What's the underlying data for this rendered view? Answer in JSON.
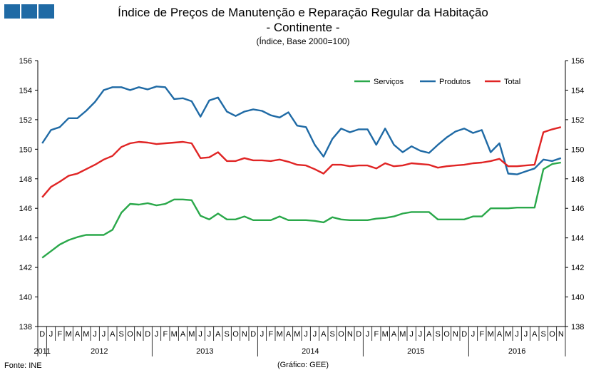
{
  "header": {
    "title": "Índice de Preços de Manutenção e Reparação Regular da Habitação",
    "subtitle": "- Continente -",
    "unit": "(Índice, Base 2000=100)"
  },
  "footer": {
    "source": "Fonte: INE",
    "credit": "(Gráfico: GEE)"
  },
  "colors": {
    "servicos": "#2aa84a",
    "produtos": "#1f6aa5",
    "total": "#e02424",
    "logo": "#1f6aa5"
  },
  "chart_data": {
    "type": "line",
    "title": "Índice de Preços de Manutenção e Reparação Regular da Habitação",
    "ylim": [
      138,
      156
    ],
    "yticks": [
      138,
      140,
      142,
      144,
      146,
      148,
      150,
      152,
      154,
      156
    ],
    "grid": false,
    "legend_position": "top-right",
    "categories": [
      "D",
      "J",
      "F",
      "M",
      "A",
      "M",
      "J",
      "J",
      "A",
      "S",
      "O",
      "N",
      "D",
      "J",
      "F",
      "M",
      "A",
      "M",
      "J",
      "J",
      "A",
      "S",
      "O",
      "N",
      "D",
      "J",
      "F",
      "M",
      "A",
      "M",
      "J",
      "J",
      "A",
      "S",
      "O",
      "N",
      "D",
      "J",
      "F",
      "M",
      "A",
      "M",
      "J",
      "J",
      "A",
      "S",
      "O",
      "N",
      "D",
      "J",
      "F",
      "M",
      "A",
      "M",
      "J",
      "J",
      "A",
      "S",
      "O",
      "N"
    ],
    "years": [
      {
        "label": "2011",
        "start": 0,
        "end": 0
      },
      {
        "label": "2012",
        "start": 1,
        "end": 12
      },
      {
        "label": "2013",
        "start": 13,
        "end": 24
      },
      {
        "label": "2014",
        "start": 25,
        "end": 36
      },
      {
        "label": "2015",
        "start": 37,
        "end": 48
      },
      {
        "label": "2016",
        "start": 49,
        "end": 59
      }
    ],
    "series": [
      {
        "name": "Serviços",
        "color": "#2aa84a",
        "values": [
          142.65,
          143.1,
          143.55,
          143.85,
          144.05,
          144.2,
          144.2,
          144.2,
          144.55,
          145.7,
          146.3,
          146.25,
          146.35,
          146.2,
          146.3,
          146.6,
          146.6,
          146.55,
          145.5,
          145.25,
          145.65,
          145.25,
          145.25,
          145.45,
          145.2,
          145.2,
          145.2,
          145.45,
          145.2,
          145.2,
          145.2,
          145.15,
          145.05,
          145.4,
          145.25,
          145.2,
          145.2,
          145.2,
          145.3,
          145.35,
          145.45,
          145.65,
          145.75,
          145.75,
          145.75,
          145.25,
          145.25,
          145.25,
          145.25,
          145.45,
          145.45,
          146.0,
          146.0,
          146.0,
          146.05,
          146.05,
          146.05,
          148.65,
          149.0,
          149.1
        ]
      },
      {
        "name": "Produtos",
        "color": "#1f6aa5",
        "values": [
          150.4,
          151.3,
          151.5,
          152.1,
          152.1,
          152.6,
          153.2,
          154.0,
          154.2,
          154.2,
          154.0,
          154.2,
          154.05,
          154.25,
          154.2,
          153.4,
          153.45,
          153.25,
          152.2,
          153.3,
          153.5,
          152.55,
          152.25,
          152.55,
          152.7,
          152.6,
          152.3,
          152.15,
          152.5,
          151.6,
          151.5,
          150.3,
          149.5,
          150.7,
          151.4,
          151.15,
          151.35,
          151.35,
          150.3,
          151.4,
          150.3,
          149.8,
          150.2,
          149.9,
          149.75,
          150.3,
          150.8,
          151.2,
          151.4,
          151.1,
          151.3,
          149.8,
          150.4,
          148.35,
          148.3,
          148.5,
          148.7,
          149.3,
          149.2,
          149.4
        ]
      },
      {
        "name": "Total",
        "color": "#e02424",
        "values": [
          146.75,
          147.45,
          147.8,
          148.2,
          148.35,
          148.65,
          148.95,
          149.3,
          149.55,
          150.15,
          150.4,
          150.5,
          150.45,
          150.35,
          150.4,
          150.45,
          150.5,
          150.4,
          149.4,
          149.45,
          149.8,
          149.2,
          149.2,
          149.4,
          149.25,
          149.25,
          149.2,
          149.3,
          149.15,
          148.95,
          148.9,
          148.65,
          148.35,
          148.95,
          148.95,
          148.85,
          148.9,
          148.9,
          148.7,
          149.05,
          148.85,
          148.9,
          149.05,
          149.0,
          148.95,
          148.75,
          148.85,
          148.9,
          148.95,
          149.05,
          149.1,
          149.2,
          149.35,
          148.85,
          148.85,
          148.9,
          148.95,
          151.15,
          151.35,
          151.5
        ]
      }
    ]
  }
}
